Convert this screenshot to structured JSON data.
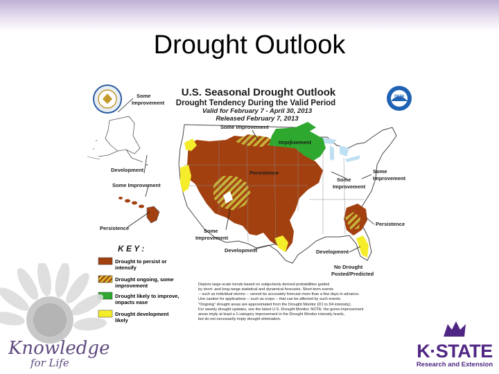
{
  "slide": {
    "title": "Drought Outlook",
    "brand_left_main": "Knowledge",
    "brand_left_sub": "for Life",
    "brand_right_main": "K·STATE",
    "brand_right_sub": "Research and Extension"
  },
  "map": {
    "title": "U.S. Seasonal Drought Outlook",
    "subtitle": "Drought Tendency During the Valid Period",
    "valid": "Valid for February 7 - April 30, 2013",
    "released": "Released February 7, 2013",
    "logo_right": "noaa",
    "labels": {
      "alaska_improvement_1": "Some",
      "alaska_improvement_2": "Improvement",
      "ak_development": "Development",
      "hi_improvement": "Some Improvement",
      "hi_persistence": "Persistence",
      "north_some_improvement": "Some Improvement",
      "north_improvement": "Improvement",
      "central_persistence": "Persistence",
      "midwest_improvement_1": "Some",
      "midwest_improvement_2": "Improvement",
      "east_improvement_1": "Some",
      "east_improvement_2": "Improvement",
      "se_persistence": "Persistence",
      "sw_improvement_1": "Some",
      "sw_improvement_2": "Improvement",
      "tx_development": "Development",
      "fl_development": "Development",
      "no_drought_1": "No Drought",
      "no_drought_2": "Posted/Predicted"
    },
    "key": {
      "title": "K E Y :",
      "items": [
        {
          "line1": "Drought to persist or",
          "line2": "intensify",
          "color": "#a2400f"
        },
        {
          "line1": "Drought ongoing, some",
          "line2": "improvement",
          "color": "#b5641b"
        },
        {
          "line1": "Drought likely to improve,",
          "line2": "impacts ease",
          "color": "#2fa82f"
        },
        {
          "line1": "Drought development",
          "line2": "likely",
          "color": "#f5ed2a"
        }
      ]
    },
    "disclaimer": [
      "Depicts large-scale trends based on subjectively derived probabilities guided",
      "by short- and long-range statistical and dynamical forecasts. Short-term events",
      "-- such as individual storms -- cannot be accurately forecast more than a few days in advance.",
      "Use caution for applications -- such as crops -- that can be affected by such events.",
      "\"Ongoing\" drought areas are approximated from the Drought Monitor (D1 to D4 intensity).",
      "For weekly drought updates, see the latest U.S. Drought Monitor. NOTE: the green improvement",
      "areas imply at least a 1-category improvement in the Drought Monitor intensity levels,",
      "but do not necessarily imply drought elimination."
    ]
  }
}
